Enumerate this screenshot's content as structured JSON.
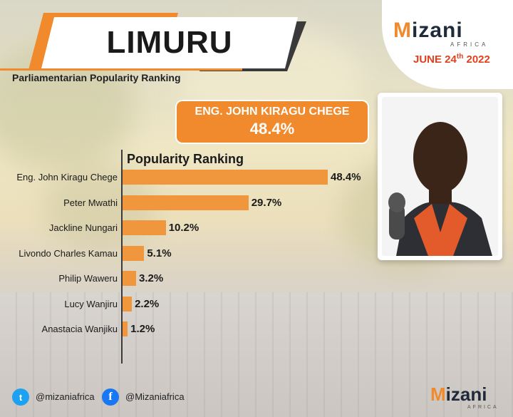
{
  "header": {
    "title": "LIMURU",
    "subtitle": "Parliamentarian Popularity Ranking"
  },
  "brand": {
    "logo_word_prefix": "M",
    "logo_word_rest": "izani",
    "logo_sub": "AFRICA",
    "date_prefix": "JUNE 24",
    "date_sup": "th",
    "date_suffix": " 2022",
    "accent_color": "#f08a2c"
  },
  "winner": {
    "name": "ENG. JOHN KIRAGU CHEGE",
    "percent": "48.4%"
  },
  "footer": {
    "twitter_handle": "@mizaniafrica",
    "facebook_handle": "@Mizaniafrica",
    "twitter_icon_name": "twitter-icon",
    "facebook_icon_name": "facebook-icon"
  },
  "chart_data": {
    "type": "bar",
    "orientation": "horizontal",
    "title": "Popularity Ranking",
    "categories": [
      "Eng. John Kiragu Chege",
      "Peter Mwathi",
      "Jackline Nungari",
      "Livondo Charles Kamau",
      "Philip Waweru",
      "Lucy Wanjiru",
      "Anastacia Wanjiku"
    ],
    "values": [
      48.4,
      29.7,
      10.2,
      5.1,
      3.2,
      2.2,
      1.2
    ],
    "value_labels": [
      "48.4%",
      "29.7%",
      "10.2%",
      "5.1%",
      "3.2%",
      "2.2%",
      "1.2%"
    ],
    "unit": "%",
    "bar_color": "#f0963c",
    "xlim": [
      0,
      48.4
    ],
    "grid": false
  }
}
